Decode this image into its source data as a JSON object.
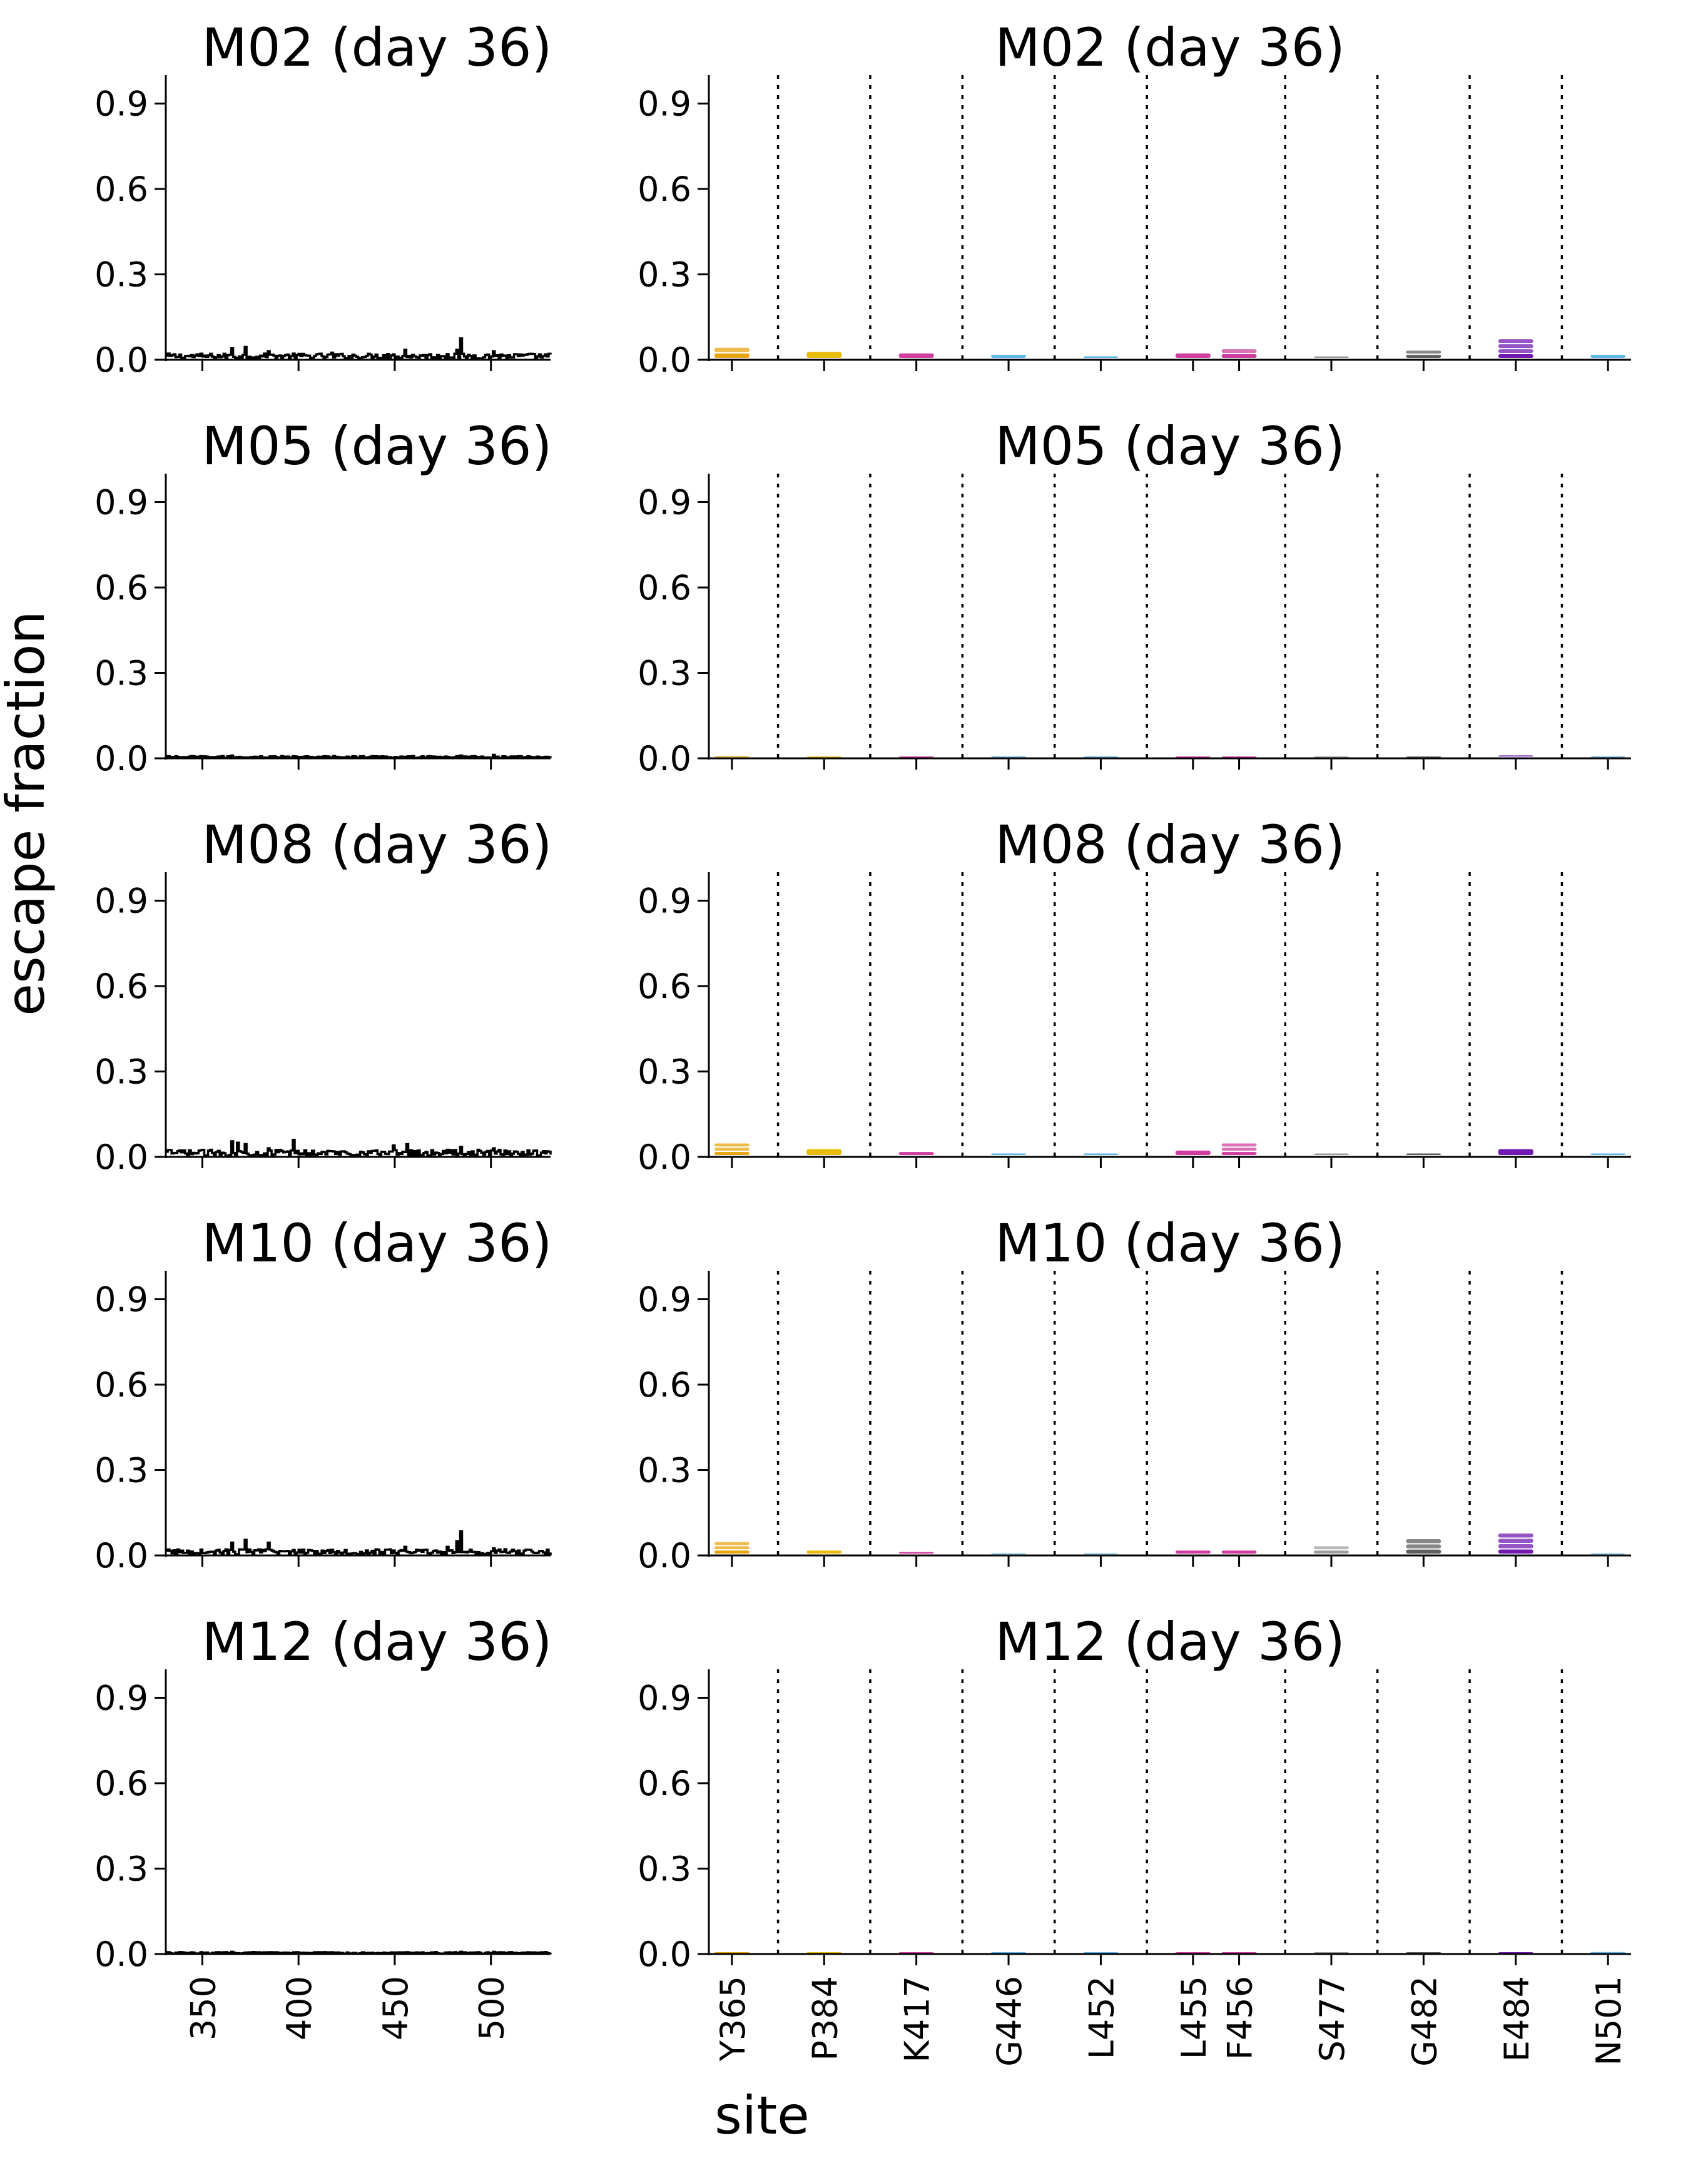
{
  "figure": {
    "ylabel": "escape fraction",
    "xlabel": "site"
  },
  "chart_data": {
    "type": "line",
    "ylim": [
      0,
      1.0
    ],
    "yticks": [
      "0.0",
      "0.3",
      "0.6",
      "0.9"
    ],
    "left_xlim": [
      331,
      531
    ],
    "left_xticks": [
      350,
      400,
      450,
      500
    ],
    "left_xtick_labels": [
      "350",
      "400",
      "450",
      "500"
    ],
    "sites": [
      "Y365",
      "P384",
      "K417",
      "G446",
      "L452",
      "L455",
      "F456",
      "S477",
      "G482",
      "E484",
      "N501"
    ],
    "site_slot": [
      0,
      1,
      2,
      3,
      4,
      5,
      6,
      7,
      8,
      9,
      10
    ],
    "site_slot_x": [
      0,
      2,
      4,
      6,
      8,
      10,
      11,
      13,
      15,
      17,
      19
    ],
    "separator_slots": [
      1,
      3,
      5,
      7,
      9,
      12,
      14,
      16,
      18
    ],
    "site_colors": [
      "#e69f00",
      "#e6b800",
      "#cc3399",
      "#56b4e9",
      "#56b4e9",
      "#cc3399",
      "#cc3399",
      "#999999",
      "#555555",
      "#6a0dad",
      "#56b4e9"
    ],
    "letter_glyph": "G",
    "panels": [
      {
        "title": "M02 (day 36)",
        "noise": 0.022,
        "spikes": [
          [
            365,
            0.04
          ],
          [
            372,
            0.045
          ],
          [
            384,
            0.03
          ],
          [
            417,
            0.025
          ],
          [
            446,
            0.02
          ],
          [
            455,
            0.035
          ],
          [
            477,
            0.02
          ],
          [
            482,
            0.035
          ],
          [
            484,
            0.075
          ],
          [
            501,
            0.03
          ]
        ],
        "site_values": [
          0.04,
          0.025,
          0.02,
          0.015,
          0.01,
          0.02,
          0.035,
          0.01,
          0.03,
          0.07,
          0.015
        ]
      },
      {
        "title": "M05 (day 36)",
        "noise": 0.008,
        "spikes": [
          [
            365,
            0.01
          ],
          [
            484,
            0.01
          ],
          [
            501,
            0.012
          ]
        ],
        "site_values": [
          0.005,
          0.004,
          0.003,
          0.002,
          0.002,
          0.002,
          0.002,
          0.002,
          0.004,
          0.008,
          0.003
        ]
      },
      {
        "title": "M08 (day 36)",
        "noise": 0.025,
        "spikes": [
          [
            365,
            0.055
          ],
          [
            368,
            0.05
          ],
          [
            372,
            0.045
          ],
          [
            384,
            0.03
          ],
          [
            397,
            0.06
          ],
          [
            449,
            0.04
          ],
          [
            456,
            0.045
          ],
          [
            477,
            0.025
          ],
          [
            484,
            0.035
          ],
          [
            501,
            0.03
          ]
        ],
        "site_values": [
          0.045,
          0.025,
          0.015,
          0.01,
          0.01,
          0.02,
          0.045,
          0.01,
          0.01,
          0.025,
          0.01
        ]
      },
      {
        "title": "M10 (day 36)",
        "noise": 0.022,
        "spikes": [
          [
            365,
            0.045
          ],
          [
            372,
            0.055
          ],
          [
            384,
            0.045
          ],
          [
            417,
            0.02
          ],
          [
            446,
            0.02
          ],
          [
            455,
            0.03
          ],
          [
            477,
            0.03
          ],
          [
            482,
            0.05
          ],
          [
            484,
            0.085
          ],
          [
            501,
            0.025
          ]
        ],
        "site_values": [
          0.045,
          0.015,
          0.01,
          0.005,
          0.005,
          0.015,
          0.015,
          0.03,
          0.055,
          0.075,
          0.005
        ]
      },
      {
        "title": "M12 (day 36)",
        "noise": 0.007,
        "spikes": [
          [
            365,
            0.008
          ],
          [
            484,
            0.008
          ],
          [
            501,
            0.008
          ]
        ],
        "site_values": [
          0.004,
          0.002,
          0.001,
          0.001,
          0.001,
          0.001,
          0.001,
          0.001,
          0.001,
          0.003,
          0.005
        ]
      }
    ]
  }
}
